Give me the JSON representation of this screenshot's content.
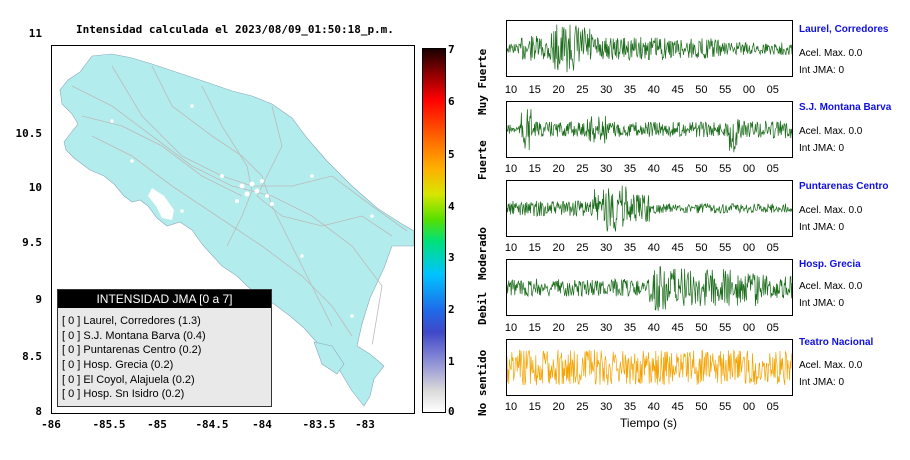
{
  "map": {
    "title": "Intensidad calculada el 2023/08/09_01:50:18_p.m.",
    "y_ticks": [
      "11",
      "10.5",
      "10",
      "9.5",
      "9",
      "8.5",
      "8"
    ],
    "x_ticks": [
      "-86",
      "-85.5",
      "-85",
      "-84.5",
      "-84",
      "-83.5",
      "-83"
    ],
    "land_color": "#b3ecec",
    "legend": {
      "heading": "INTENSIDAD JMA [0 a 7]",
      "rows": [
        "[ 0 ]  Laurel, Corredores (1.3)",
        "[ 0 ]  S.J. Montana Barva (0.4)",
        "[ 0 ]  Puntarenas Centro (0.2)",
        "[ 0 ]  Hosp. Grecia (0.2)",
        "[ 0 ]  El Coyol, Alajuela (0.2)",
        "[ 0 ]  Hosp. Sn Isidro (0.2)"
      ]
    }
  },
  "scale": {
    "numbers": [
      "7",
      "6",
      "5",
      "4",
      "3",
      "2",
      "1",
      "0"
    ],
    "words": [
      "Muy Fuerte",
      "Fuerte",
      "Moderado",
      "Debil",
      "No sentido"
    ]
  },
  "waveforms": {
    "tick_labels": [
      "10",
      "15",
      "20",
      "25",
      "30",
      "35",
      "40",
      "45",
      "50",
      "55",
      "00",
      "05"
    ],
    "time_label": "Tiempo (s)",
    "stations": [
      {
        "name": "Laurel, Corredores",
        "acel": "Acel. Max. 0.0",
        "int": "Int JMA: 0",
        "color": "#1a6b1a"
      },
      {
        "name": "S.J. Montana Barva",
        "acel": "Acel. Max. 0.0",
        "int": "Int JMA: 0",
        "color": "#1a6b1a"
      },
      {
        "name": "Puntarenas Centro",
        "acel": "Acel. Max. 0.0",
        "int": "Int JMA: 0",
        "color": "#1a6b1a"
      },
      {
        "name": "Hosp. Grecia",
        "acel": "Acel. Max. 0.0",
        "int": "Int JMA: 0",
        "color": "#1a6b1a"
      },
      {
        "name": "Teatro Nacional",
        "acel": "Acel. Max. 0.0",
        "int": "Int JMA: 0",
        "color": "#f5a300"
      }
    ]
  }
}
